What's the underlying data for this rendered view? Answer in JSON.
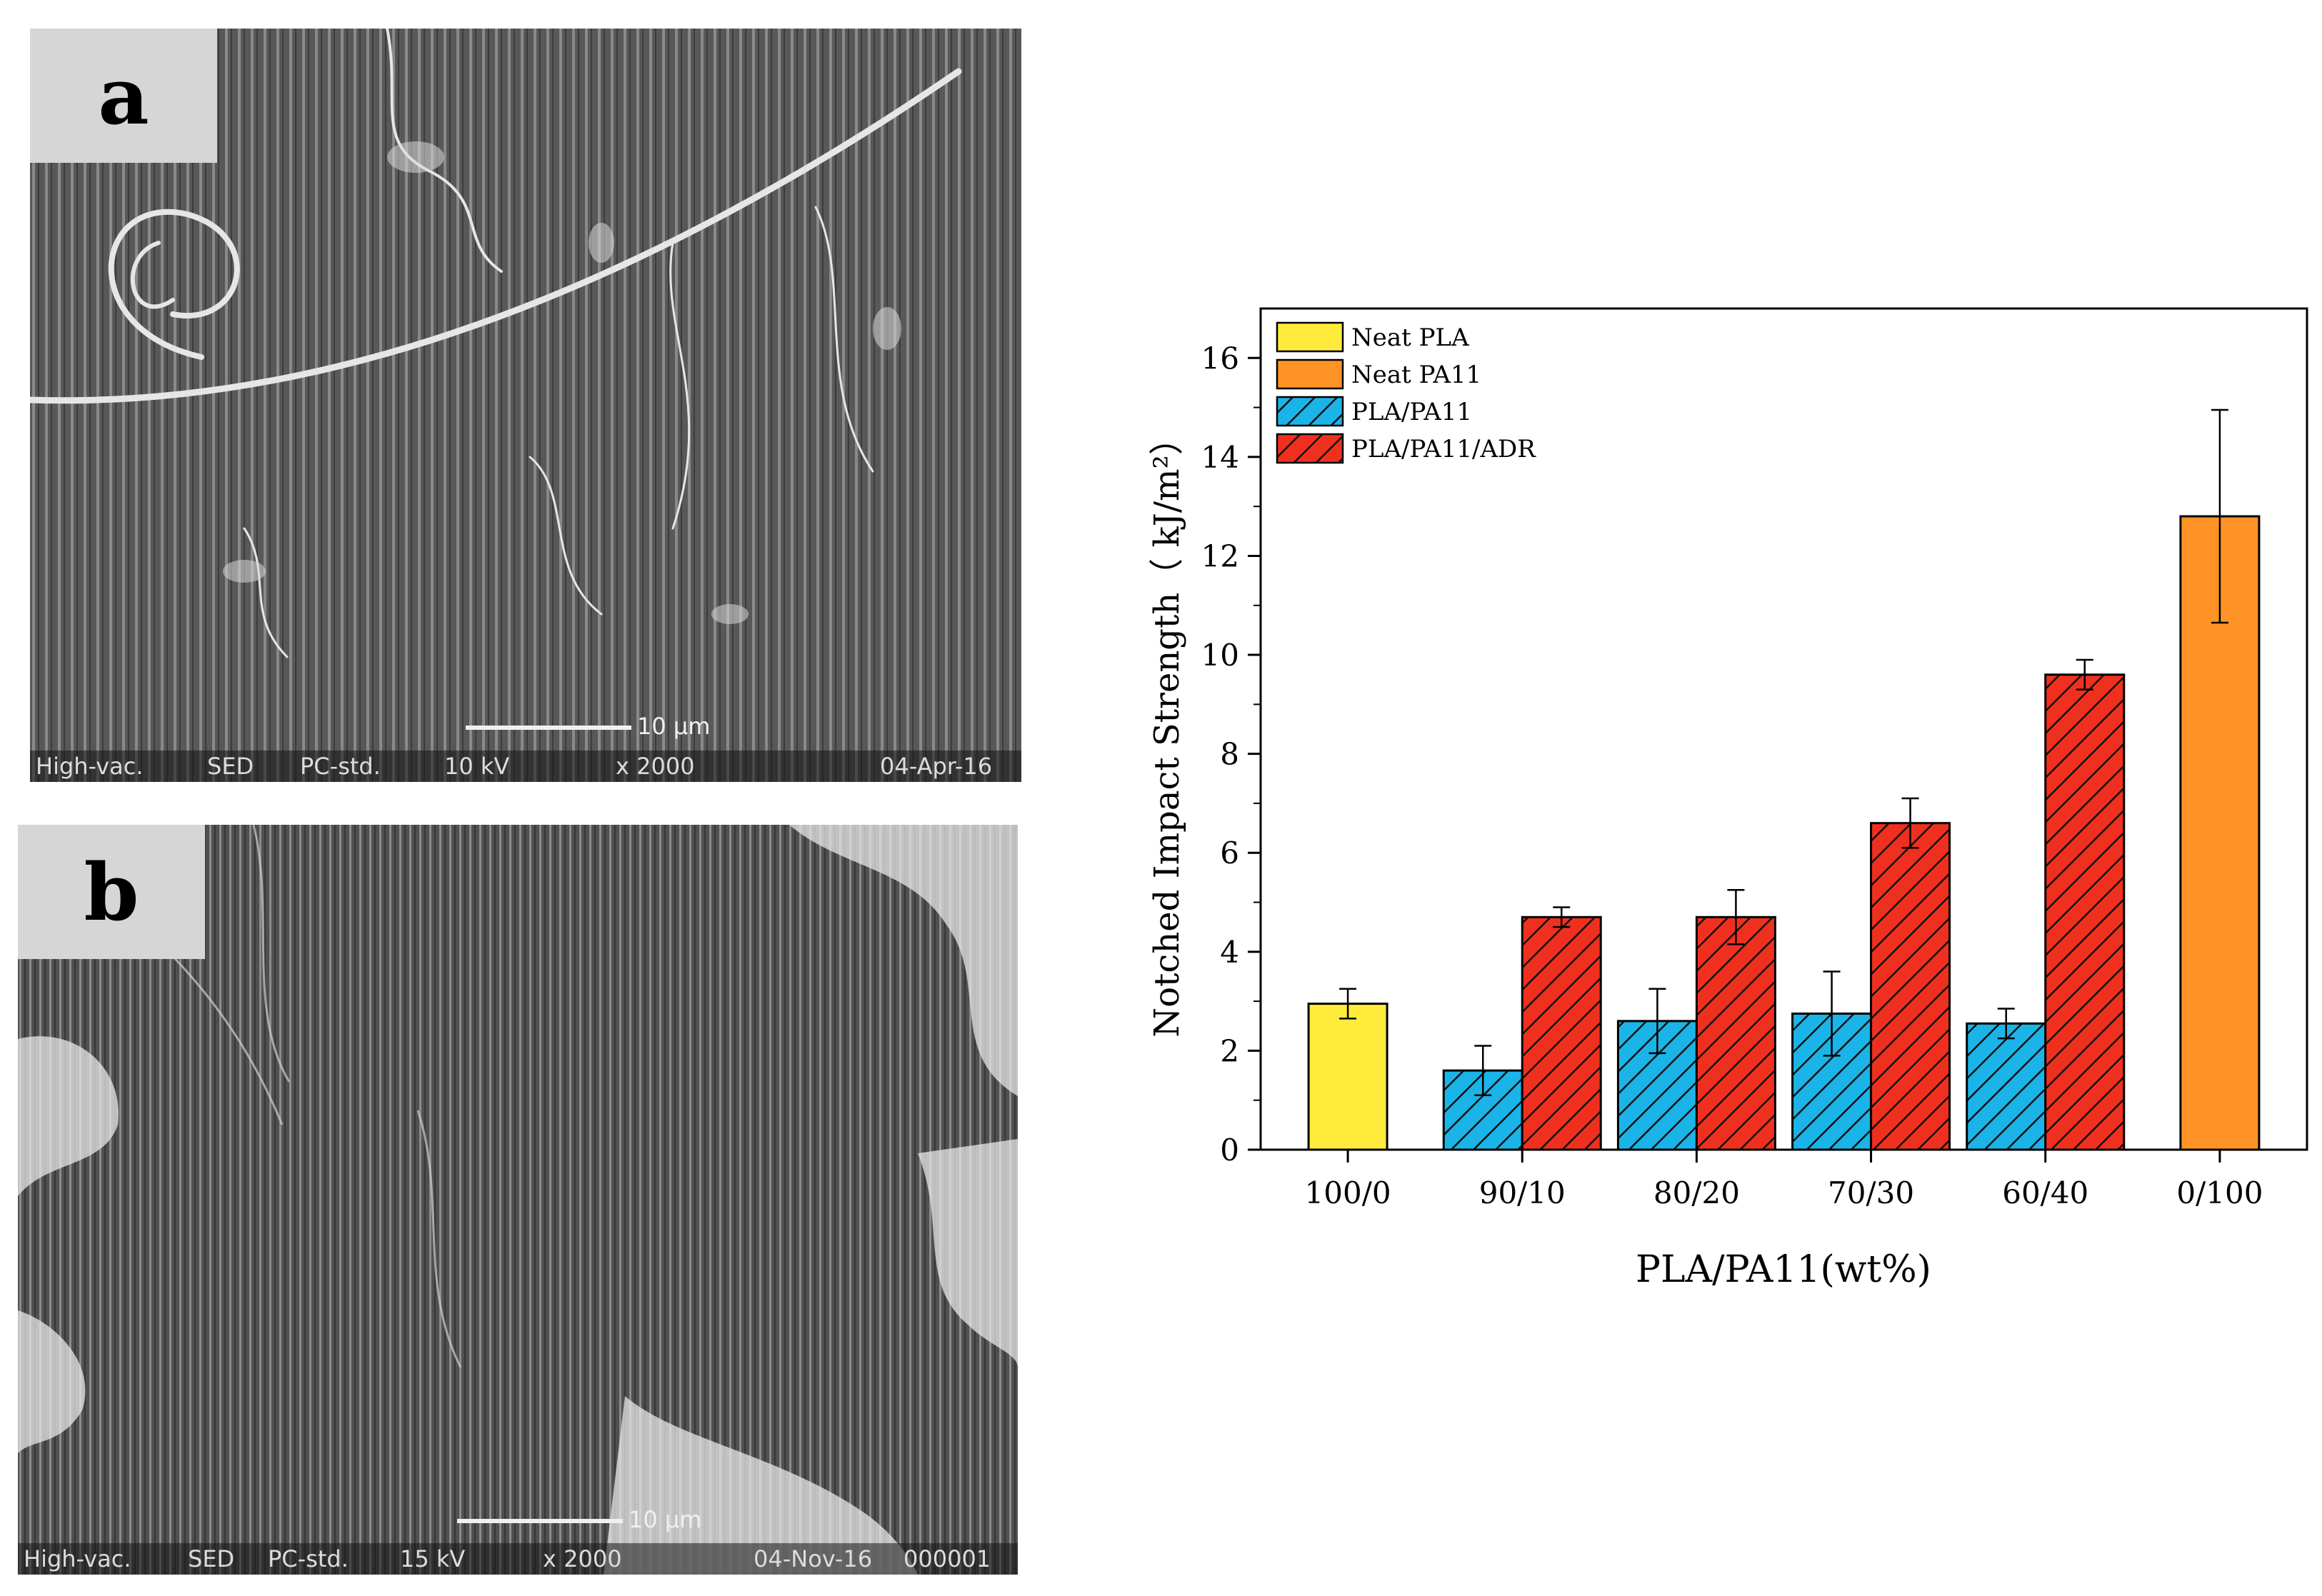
{
  "panels": {
    "a": {
      "label": "a",
      "footer": {
        "vac": "High-vac.",
        "det": "SED",
        "mode": "PC-std.",
        "kv": "10 kV",
        "mag": "x 2000",
        "date": "04-Apr-16"
      },
      "scale": "10 μm"
    },
    "b": {
      "label": "b",
      "footer": {
        "vac": "High-vac.",
        "det": "SED",
        "mode": "PC-std.",
        "kv": "15 kV",
        "mag": "x 2000",
        "date": "04-Nov-16",
        "id": "000001"
      },
      "scale": "10 μm"
    }
  },
  "colors": {
    "neat_pla": "#ffeb3b",
    "neat_pa11": "#ff9326",
    "pla_pa11": "#1bb4e8",
    "pla_pa11_adr": "#f0301e"
  },
  "chart_data": {
    "type": "bar",
    "xlabel": "PLA/PA11(wt%)",
    "ylabel": "Notched Impact Strength（ kJ/m²）",
    "ylim": [
      0,
      17
    ],
    "yticks": [
      0,
      2,
      4,
      6,
      8,
      10,
      12,
      14,
      16
    ],
    "categories": [
      "100/0",
      "90/10",
      "80/20",
      "70/30",
      "60/40",
      "0/100"
    ],
    "legend_position": "top-left",
    "series": [
      {
        "name": "Neat PLA",
        "pattern": "solid",
        "values": [
          2.95,
          null,
          null,
          null,
          null,
          null
        ],
        "errors": [
          0.3,
          null,
          null,
          null,
          null,
          null
        ]
      },
      {
        "name": "Neat PA11",
        "pattern": "solid",
        "values": [
          null,
          null,
          null,
          null,
          null,
          12.8
        ],
        "errors": [
          null,
          null,
          null,
          null,
          null,
          2.15
        ]
      },
      {
        "name": "PLA/PA11",
        "pattern": "hatch",
        "values": [
          null,
          1.6,
          2.6,
          2.75,
          2.55,
          null
        ],
        "errors": [
          null,
          0.5,
          0.65,
          0.85,
          0.3,
          null
        ]
      },
      {
        "name": "PLA/PA11/ADR",
        "pattern": "hatch",
        "values": [
          null,
          4.7,
          4.7,
          6.6,
          9.6,
          null
        ],
        "errors": [
          null,
          0.2,
          0.55,
          0.5,
          0.3,
          null
        ]
      }
    ]
  }
}
